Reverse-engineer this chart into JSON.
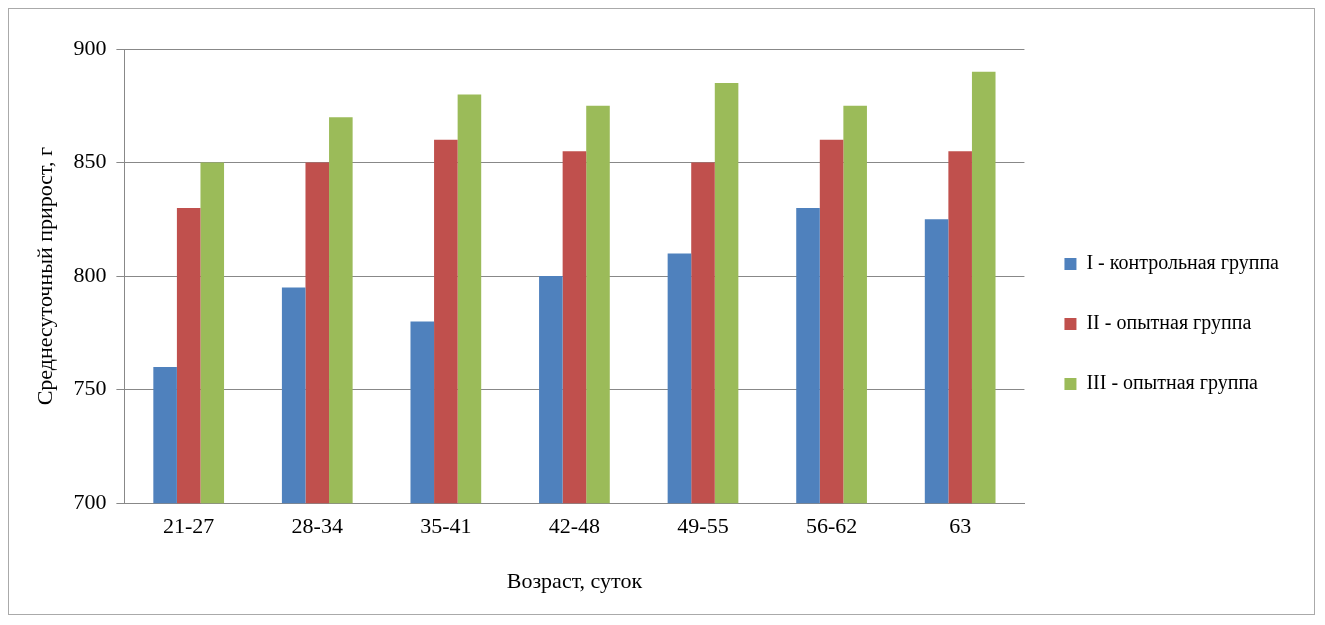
{
  "chart_data": {
    "type": "bar",
    "xlabel": "Возраст, суток",
    "ylabel": "Среднесуточный прирост, г",
    "categories": [
      "21-27",
      "28-34",
      "35-41",
      "42-48",
      "49-55",
      "56-62",
      "63"
    ],
    "series": [
      {
        "name": "I - контрольная группа",
        "color": "#4f81bd",
        "values": [
          760,
          795,
          780,
          800,
          810,
          830,
          825
        ]
      },
      {
        "name": "II - опытная группа",
        "color": "#c0504d",
        "values": [
          830,
          850,
          860,
          855,
          850,
          860,
          855
        ]
      },
      {
        "name": "III - опытная группа",
        "color": "#9bbb59",
        "values": [
          850,
          870,
          880,
          875,
          885,
          875,
          890
        ]
      }
    ],
    "ylim": [
      700,
      900
    ],
    "yticks": [
      700,
      750,
      800,
      850,
      900
    ],
    "grid": "y",
    "legend": "right"
  }
}
